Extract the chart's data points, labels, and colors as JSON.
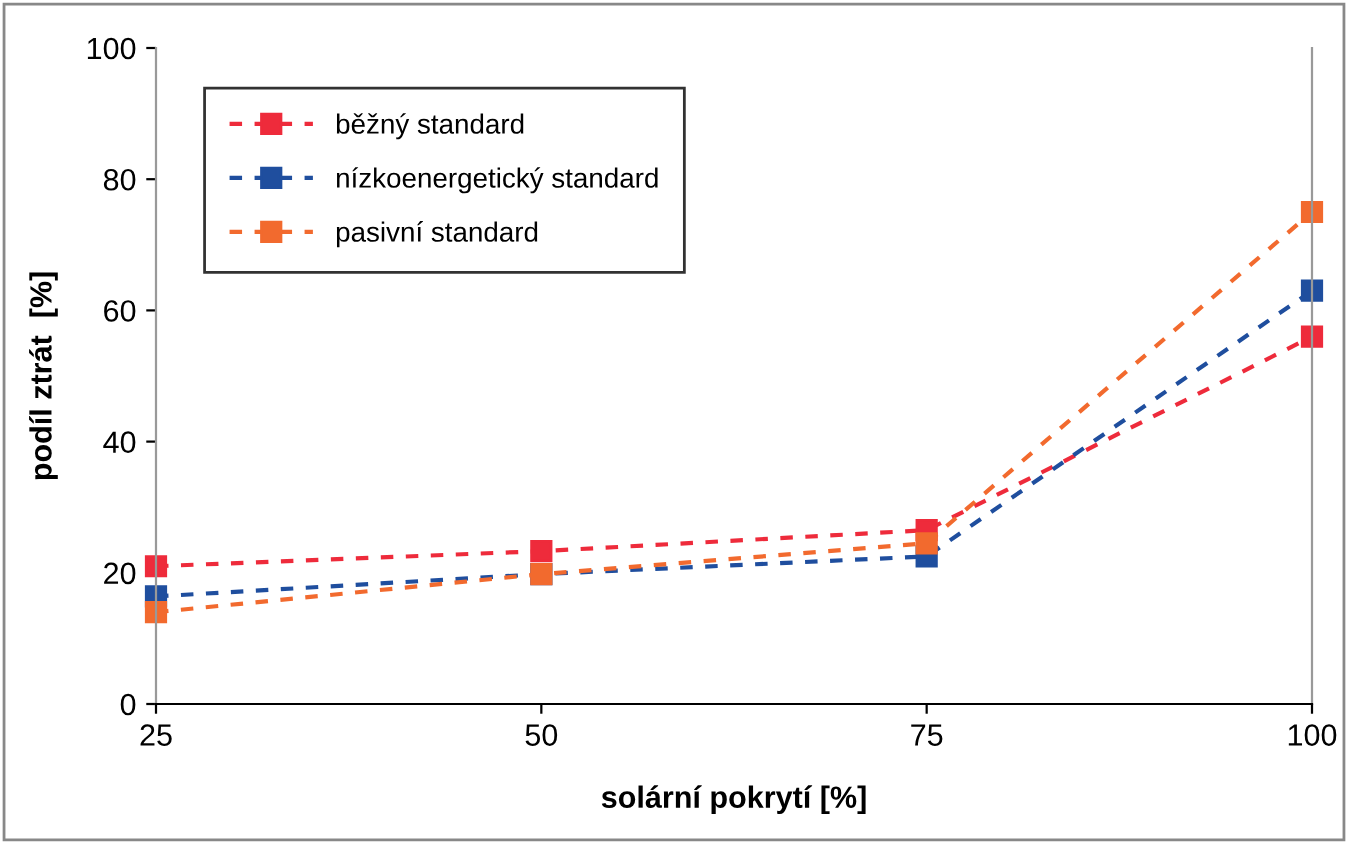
{
  "chart_data": {
    "type": "line",
    "xlabel": "solární pokrytí [%]",
    "ylabel": "podíl ztrát  [%]",
    "x": [
      25,
      50,
      75,
      100
    ],
    "xlim": [
      25,
      100
    ],
    "xticks": [
      25,
      50,
      75,
      100
    ],
    "ylim": [
      0,
      100
    ],
    "yticks": [
      0,
      20,
      40,
      60,
      80,
      100
    ],
    "series": [
      {
        "name": "běžný standard",
        "color": "#ee2b3b",
        "values": [
          21,
          23.3,
          26.5,
          56
        ]
      },
      {
        "name": "nízkoenergetický standard",
        "color": "#1f4e9e",
        "values": [
          16.4,
          19.8,
          22.5,
          63
        ]
      },
      {
        "name": "pasivní standard",
        "color": "#f26a2e",
        "values": [
          14,
          19.8,
          24.5,
          75
        ]
      }
    ],
    "marker": "square",
    "line_style": "dashed",
    "legend": "top left",
    "grid": false
  }
}
